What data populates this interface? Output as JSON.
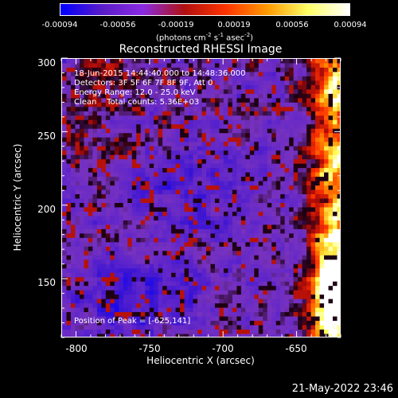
{
  "colorbar": {
    "tick_labels": [
      "-0.00094",
      "-0.00056",
      "-0.00019",
      "0.00019",
      "0.00056",
      "0.00094"
    ],
    "units_text": "(photons cm",
    "units_exp1": "-2",
    "units_mid1": " s",
    "units_exp2": "-1",
    "units_mid2": " asec",
    "units_exp3": "-2",
    "units_end": ")"
  },
  "plot": {
    "title": "Reconstructed RHESSI Image",
    "info_lines": [
      "18-Jun-2015 14:44:40.000 to 14:48:36.000",
      "Detectors: 3F 5F 6F 7F 8F 9F, Att 0",
      "Energy Range: 12.0 - 25.0 keV",
      "Clean    Total counts: 5.36E+03"
    ],
    "peak_text": "Position of Peak = [-625,141]",
    "xlabel": "Heliocentric X (arcsec)",
    "ylabel": "Heliocentric Y (arcsec)",
    "xticks": [
      "-800",
      "-750",
      "-700",
      "-650"
    ],
    "yticks": [
      "300",
      "250",
      "200",
      "150"
    ],
    "x_range": [
      -810,
      -620
    ],
    "y_range": [
      110,
      300
    ],
    "x_tick_values": [
      -800,
      -750,
      -700,
      -650
    ],
    "y_tick_values": [
      300,
      250,
      200,
      150
    ],
    "peak_position": [
      -625,
      141
    ]
  },
  "footer": {
    "timestamp": "21-May-2022 23:46"
  },
  "colors": {
    "colormap": [
      "#0000ff",
      "#5a1cc8",
      "#8a2be2",
      "#b01010",
      "#ff3300",
      "#ff9900",
      "#ffff66",
      "#ffffff"
    ]
  }
}
